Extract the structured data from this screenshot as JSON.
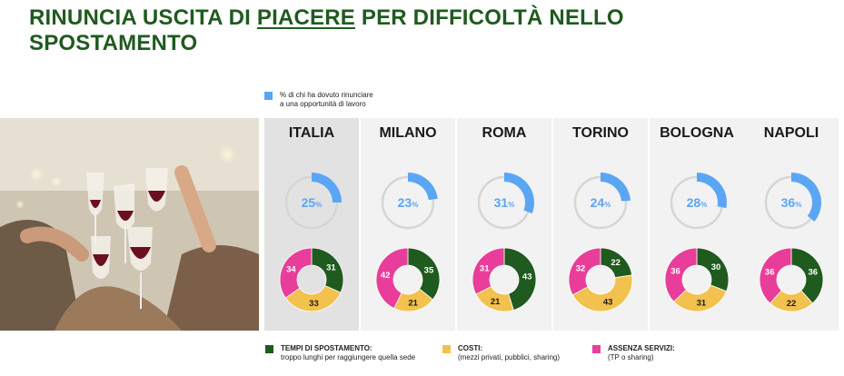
{
  "title_parts": [
    "RINUNCIA USCITA DI ",
    "PIACERE",
    " PER DIFFICOLTÀ NELLO SPOSTAMENTO"
  ],
  "colors": {
    "title": "#1f5a1f",
    "share": "#5aa6f4",
    "share_track": "#d6d6d6",
    "tempi": "#1f5a1f",
    "costi": "#f2c14e",
    "assenza": "#e83e9a"
  },
  "chart_data": [
    {
      "type": "pie",
      "title": "",
      "legend": [
        "% di chi ha dovuto rinunciare a una opportunità di lavoro"
      ],
      "categories": [
        "ITALIA",
        "MILANO",
        "ROMA",
        "TORINO",
        "BOLOGNA",
        "NAPOLI"
      ],
      "values": [
        25,
        23,
        31,
        24,
        28,
        36
      ],
      "unit": "%"
    },
    {
      "type": "pie",
      "title": "",
      "categories": [
        "ITALIA",
        "MILANO",
        "ROMA",
        "TORINO",
        "BOLOGNA",
        "NAPOLI"
      ],
      "series": [
        {
          "name": "TEMPI DI SPOSTAMENTO",
          "values": [
            31,
            35,
            43,
            22,
            30,
            36
          ]
        },
        {
          "name": "COSTI",
          "values": [
            33,
            21,
            21,
            43,
            31,
            22
          ]
        },
        {
          "name": "ASSENZA SERVIZI",
          "values": [
            34,
            42,
            31,
            32,
            36,
            36
          ]
        }
      ]
    }
  ],
  "legend_top": {
    "line1": "% di chi ha dovuto rinunciare",
    "line2": "a una opportunità di lavoro"
  },
  "legend_bottom": [
    {
      "title": "TEMPI DI SPOSTAMENTO:",
      "sub": "troppo lunghi per raggiungere quella sede"
    },
    {
      "title": "COSTI:",
      "sub": "(mezzi privati, pubblici, sharing)"
    },
    {
      "title": "ASSENZA SERVIZI:",
      "sub": "(TP o sharing)"
    }
  ]
}
